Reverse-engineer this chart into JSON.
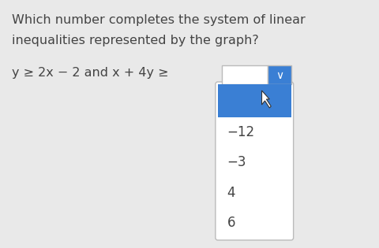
{
  "bg_color": "#e9e9e9",
  "question_line1": "Which number completes the system of linear",
  "question_line2": "inequalities represented by the graph?",
  "equation_text": "y ≥ 2x − 2 and x + 4y ≥",
  "dropdown_options": [
    "−12",
    "−3",
    "4",
    "6"
  ],
  "blue_highlight_color": "#3a7fd4",
  "dropdown_bg": "#ffffff",
  "dropdown_border": "#bbbbbb",
  "text_color": "#444444",
  "font_size_question": 11.5,
  "font_size_eq": 11.5,
  "font_size_options": 12
}
